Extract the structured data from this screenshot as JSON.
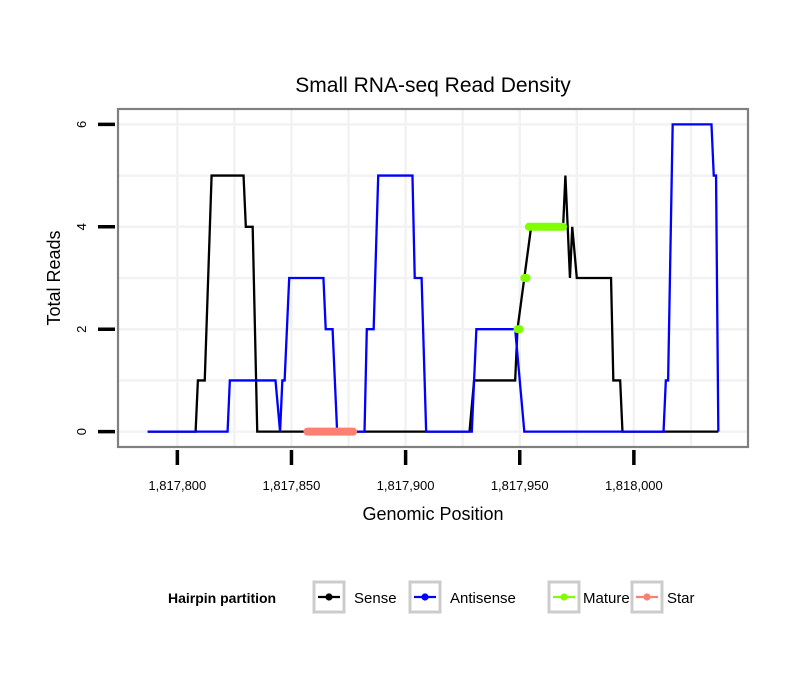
{
  "chart_data": {
    "type": "line",
    "title": "Small RNA-seq Read Density",
    "xlabel": "Genomic Position",
    "ylabel": "Total Reads",
    "xlim": [
      1817774,
      1818050
    ],
    "ylim": [
      -0.3,
      6.3
    ],
    "x_ticks": [
      1817800,
      1817850,
      1817900,
      1817950,
      1818000
    ],
    "x_tick_labels": [
      "1,817,800",
      "1,817,850",
      "1,817,900",
      "1,817,950",
      "1,818,000"
    ],
    "y_ticks": [
      0,
      2,
      4,
      6
    ],
    "y_tick_labels": [
      "0",
      "2",
      "4",
      "6"
    ],
    "grid": true,
    "legend": {
      "title": "Hairpin partition",
      "position": "bottom",
      "entries": [
        {
          "name": "Sense",
          "color": "#000000"
        },
        {
          "name": "Antisense",
          "color": "#0000FF"
        },
        {
          "name": "Mature",
          "color": "#7FFF00"
        },
        {
          "name": "Star",
          "color": "#FA8072"
        }
      ]
    },
    "series": [
      {
        "name": "Sense",
        "color": "#000000",
        "style": "line",
        "points": [
          [
            1817787,
            0
          ],
          [
            1817808,
            0
          ],
          [
            1817809,
            1
          ],
          [
            1817812,
            1
          ],
          [
            1817815,
            5
          ],
          [
            1817829,
            5
          ],
          [
            1817830,
            4
          ],
          [
            1817833,
            4
          ],
          [
            1817835,
            0
          ],
          [
            1817928,
            0
          ],
          [
            1817930,
            1
          ],
          [
            1817948,
            1
          ],
          [
            1817949,
            2
          ],
          [
            1817952,
            3
          ],
          [
            1817955,
            4
          ],
          [
            1817969,
            4
          ],
          [
            1817970,
            5
          ],
          [
            1817972,
            3
          ],
          [
            1817973,
            4
          ],
          [
            1817975,
            3
          ],
          [
            1817990,
            3
          ],
          [
            1817991,
            1
          ],
          [
            1817994,
            1
          ],
          [
            1817995,
            0
          ],
          [
            1818037,
            0
          ]
        ]
      },
      {
        "name": "Antisense",
        "color": "#0000FF",
        "style": "line",
        "points": [
          [
            1817787,
            0
          ],
          [
            1817822,
            0
          ],
          [
            1817823,
            1
          ],
          [
            1817843,
            1
          ],
          [
            1817845,
            0
          ],
          [
            1817846,
            1
          ],
          [
            1817847,
            1
          ],
          [
            1817849,
            3
          ],
          [
            1817864,
            3
          ],
          [
            1817865,
            2
          ],
          [
            1817868,
            2
          ],
          [
            1817870,
            0
          ],
          [
            1817882,
            0
          ],
          [
            1817883,
            2
          ],
          [
            1817886,
            2
          ],
          [
            1817888,
            5
          ],
          [
            1817903,
            5
          ],
          [
            1817904,
            3
          ],
          [
            1817907,
            3
          ],
          [
            1817909,
            0
          ],
          [
            1817929,
            0
          ],
          [
            1817931,
            2
          ],
          [
            1817948,
            2
          ],
          [
            1817950,
            1
          ],
          [
            1817952,
            0
          ],
          [
            1818013,
            0
          ],
          [
            1818014,
            1
          ],
          [
            1818015,
            1
          ],
          [
            1818017,
            6
          ],
          [
            1818034,
            6
          ],
          [
            1818035,
            5
          ],
          [
            1818036,
            5
          ],
          [
            1818037,
            0
          ]
        ]
      },
      {
        "name": "Mature",
        "color": "#7FFF00",
        "style": "segments",
        "segments": [
          [
            [
              1817949,
              2
            ],
            [
              1817950,
              2
            ]
          ],
          [
            [
              1817952,
              3
            ],
            [
              1817953,
              3
            ]
          ],
          [
            [
              1817954,
              4
            ],
            [
              1817969,
              4
            ]
          ]
        ]
      },
      {
        "name": "Star",
        "color": "#FA8072",
        "style": "segments",
        "segments": [
          [
            [
              1817857,
              0
            ],
            [
              1817877,
              0
            ]
          ]
        ]
      }
    ]
  }
}
